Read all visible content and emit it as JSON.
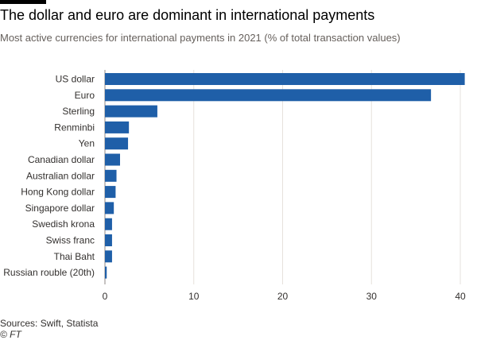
{
  "header": {
    "title": "The dollar and euro are dominant in international payments",
    "subtitle": "Most active currencies for international payments in 2021 (% of total transaction values)"
  },
  "footer": {
    "source": "Sources: Swift, Statista",
    "credit": "© FT"
  },
  "colors": {
    "bar": "#1f5fa8",
    "grid": "#e6e1dc",
    "text": "#33302e",
    "axis": "#8c8784"
  },
  "chart_data": {
    "type": "bar",
    "orientation": "horizontal",
    "title": "The dollar and euro are dominant in international payments",
    "subtitle": "Most active currencies for international payments in 2021 (% of total transaction values)",
    "categories": [
      "US dollar",
      "Euro",
      "Sterling",
      "Renminbi",
      "Yen",
      "Canadian dollar",
      "Australian dollar",
      "Hong Kong dollar",
      "Singapore dollar",
      "Swedish krona",
      "Swiss franc",
      "Thai Baht",
      "Russian rouble (20th)"
    ],
    "values": [
      40.5,
      36.7,
      5.9,
      2.7,
      2.6,
      1.7,
      1.3,
      1.2,
      1.0,
      0.8,
      0.8,
      0.8,
      0.2
    ],
    "xlim": [
      0,
      40
    ],
    "xticks": [
      0,
      10,
      20,
      30,
      40
    ],
    "grid": true,
    "legend": "none"
  }
}
